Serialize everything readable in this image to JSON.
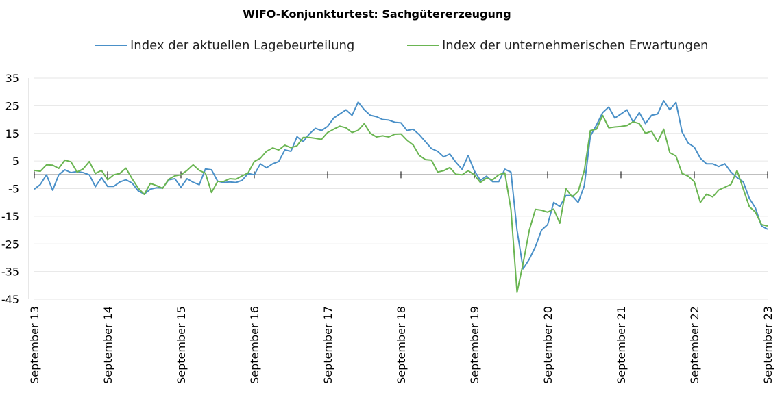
{
  "chart_data": {
    "type": "line",
    "title": "WIFO-Konjunkturtest: Sachgütererzeugung",
    "legend_position": "top",
    "ylim": [
      -45,
      35
    ],
    "yticks": [
      35,
      25,
      15,
      5,
      -5,
      -15,
      -25,
      -35,
      -45
    ],
    "xtick_labels": [
      "September 13",
      "September 14",
      "September 15",
      "September 16",
      "September 17",
      "September 18",
      "September 19",
      "September 20",
      "September 21",
      "September 22",
      "September 23"
    ],
    "x_start": "2013-09",
    "x_end": "2023-09",
    "grid": "horizontal",
    "series": [
      {
        "name": "Index der aktuellen Lagebeurteilung",
        "color": "#4a90c8",
        "values": [
          -5.2,
          -3.5,
          0,
          -5.6,
          0,
          1.8,
          0.8,
          1.2,
          0.8,
          0,
          -4.3,
          -1,
          -4.2,
          -4.2,
          -2.6,
          -1.8,
          -3,
          -5.8,
          -7,
          -5.2,
          -4.7,
          -4.8,
          -1.8,
          -1.4,
          -4.5,
          -1.4,
          -2.7,
          -3.6,
          2.1,
          1.8,
          -2.3,
          -2.8,
          -2.6,
          -2.8,
          -2,
          0.5,
          0,
          4,
          2.5,
          4,
          4.8,
          9,
          8.5,
          13.8,
          12,
          14.8,
          16.8,
          16,
          17.5,
          20.5,
          22,
          23.5,
          21.5,
          26.3,
          23.5,
          21.5,
          21,
          20,
          19.8,
          19,
          18.8,
          16,
          16.5,
          14.5,
          12,
          9.5,
          8.5,
          6.5,
          7.5,
          4.5,
          2,
          7,
          1.5,
          -2,
          -0.5,
          -2.5,
          -2.5,
          2,
          1,
          -20,
          -34,
          -30.5,
          -26,
          -20,
          -18,
          -10,
          -11.5,
          -7.5,
          -7.5,
          -10,
          -4,
          14,
          18,
          22.5,
          24.5,
          20.5,
          22,
          23.5,
          19,
          22.5,
          18.5,
          21.5,
          22,
          26.8,
          23.5,
          26.2,
          15.5,
          11.5,
          10,
          6,
          4,
          4,
          3,
          4,
          1,
          -1,
          -2.5,
          -8.5,
          -12,
          -18.5,
          -19.7
        ]
      },
      {
        "name": "Index der unternehmerischen Erwartungen",
        "color": "#6ab552",
        "values": [
          1.6,
          1.3,
          3.6,
          3.5,
          2.3,
          5.3,
          4.7,
          1,
          2.1,
          4.8,
          0.5,
          1.6,
          -1.8,
          0,
          0.5,
          2.4,
          -1.4,
          -4.8,
          -7.1,
          -3.1,
          -3.9,
          -4.9,
          -1.6,
          -0.4,
          0,
          1.6,
          3.6,
          1.6,
          0.6,
          -6.4,
          -2.4,
          -2.4,
          -1.4,
          -1.6,
          -0.4,
          0.7,
          4.8,
          6,
          8.5,
          9.7,
          9,
          10.7,
          9.8,
          10.5,
          13.5,
          13.5,
          13.2,
          12.8,
          15.3,
          16.5,
          17.6,
          17,
          15.3,
          16.1,
          18.5,
          15,
          13.7,
          14.1,
          13.7,
          14.7,
          14.8,
          12.5,
          10.8,
          7,
          5.5,
          5.3,
          1,
          1.5,
          2.6,
          0.2,
          0,
          1.5,
          0,
          -2.8,
          -1.2,
          -1.8,
          0,
          0.7,
          -12.5,
          -42.5,
          -32,
          -20,
          -12.5,
          -12.8,
          -13.5,
          -12.4,
          -17.5,
          -5,
          -8,
          -6,
          1.5,
          16,
          16.5,
          21.5,
          17,
          17.3,
          17.5,
          17.8,
          19.2,
          18.5,
          15,
          15.8,
          12,
          16.5,
          8,
          6.8,
          0.5,
          -0.5,
          -2.5,
          -10,
          -7,
          -8,
          -5.5,
          -4.5,
          -3.5,
          1.6,
          -5,
          -11.5,
          -13.5,
          -18,
          -18.5
        ]
      }
    ]
  }
}
